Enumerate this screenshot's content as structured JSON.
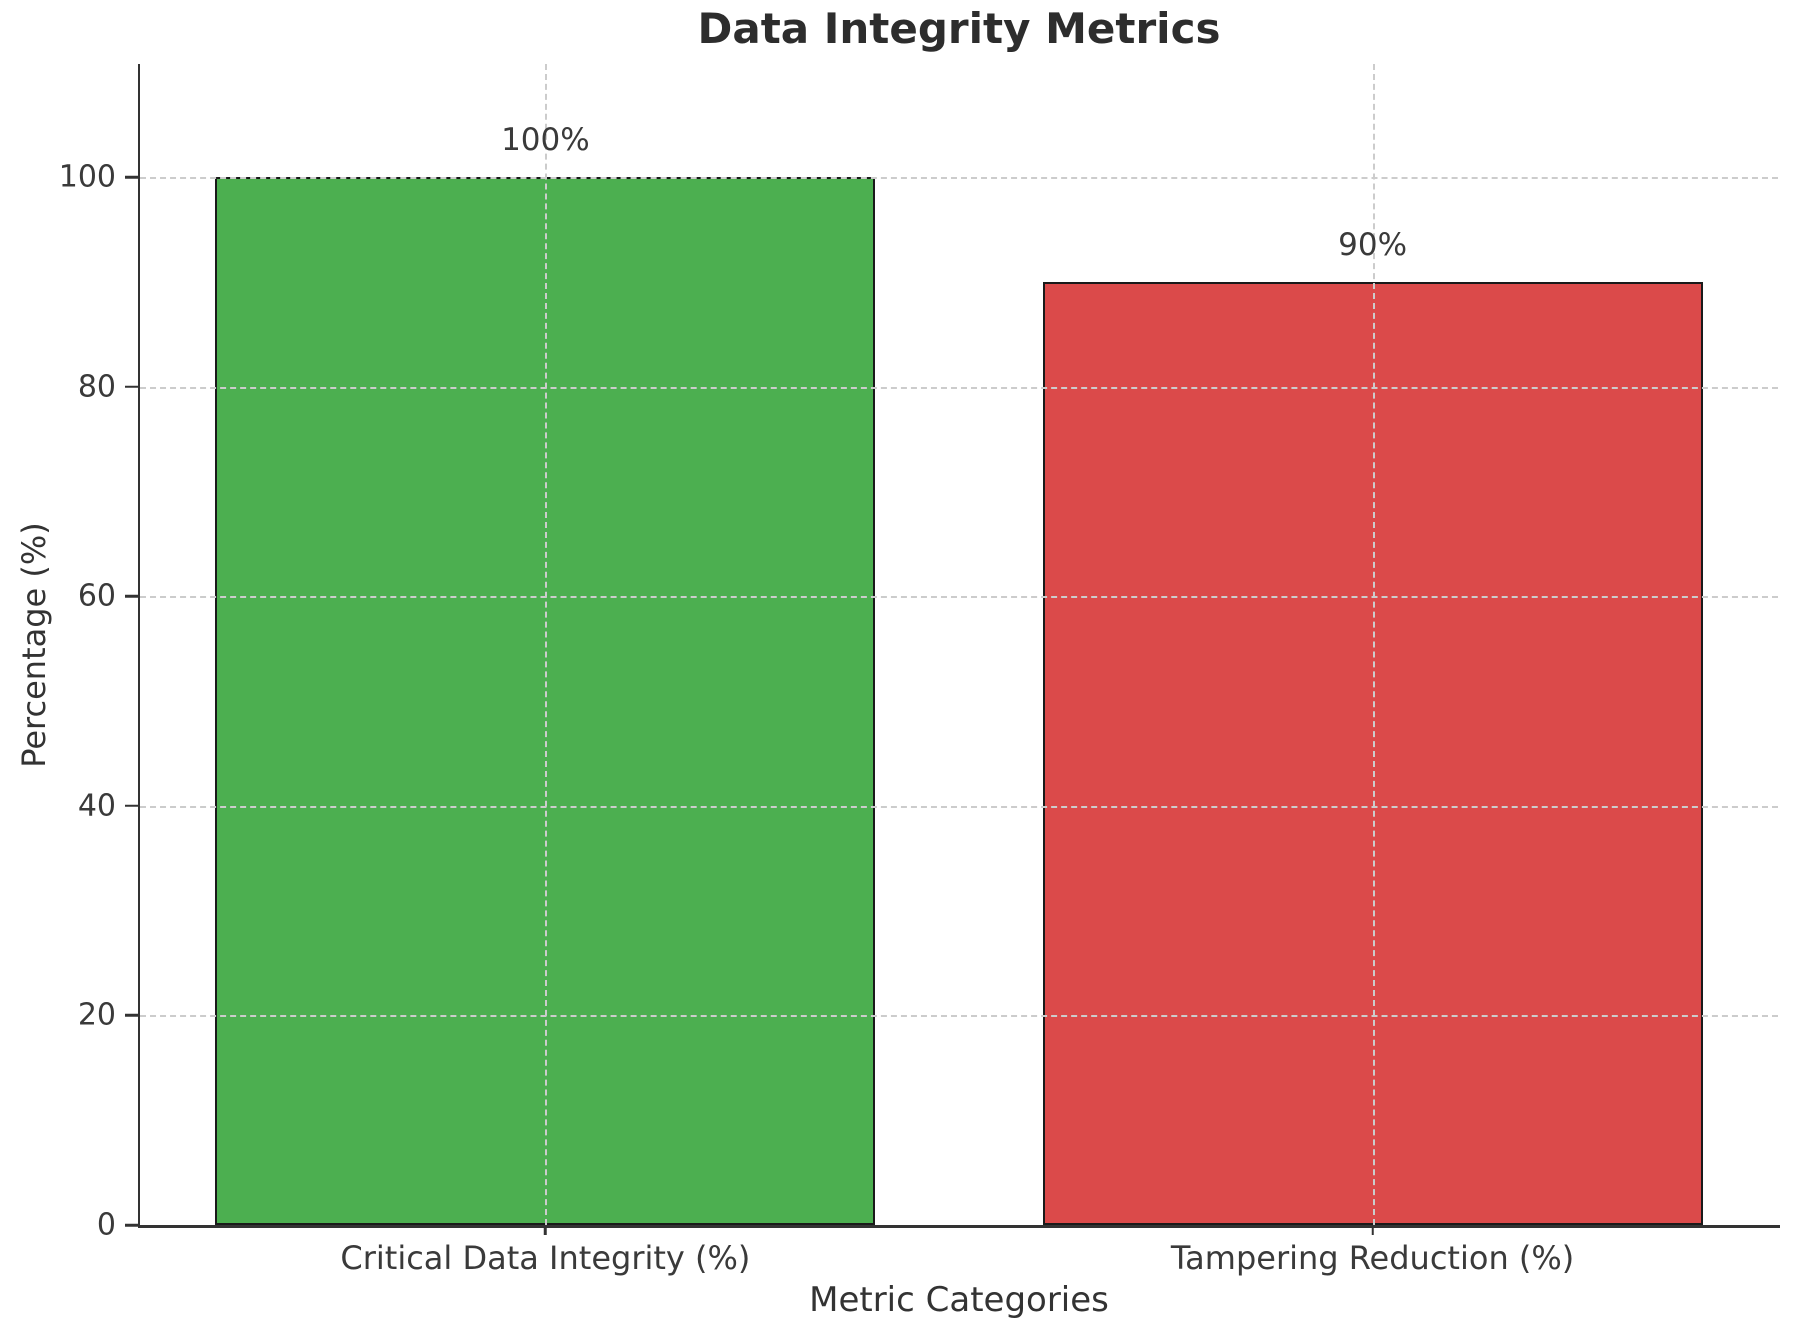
{
  "chart_data": {
    "type": "bar",
    "title": "Data Integrity Metrics",
    "xlabel": "Metric Categories",
    "ylabel": "Percentage (%)",
    "categories": [
      "Critical Data Integrity (%)",
      "Tampering Reduction (%)"
    ],
    "values": [
      100,
      90
    ],
    "bar_value_labels": [
      "100%",
      "90%"
    ],
    "bar_colors": [
      "#4caf50",
      "#db4a4a"
    ],
    "bar_edge_color": "#1a1a1a",
    "y_ticks": [
      0,
      20,
      40,
      60,
      80,
      100
    ],
    "ylim": [
      0,
      110.8
    ],
    "grid": "dashed, drawn above bars, horizontal at y ticks and vertical at bar centers",
    "grid_color": "#cccccc",
    "axis_color": "#333333",
    "text_color": "#3a3a3a",
    "title_color": "#2d2d2d",
    "legend": "none"
  }
}
